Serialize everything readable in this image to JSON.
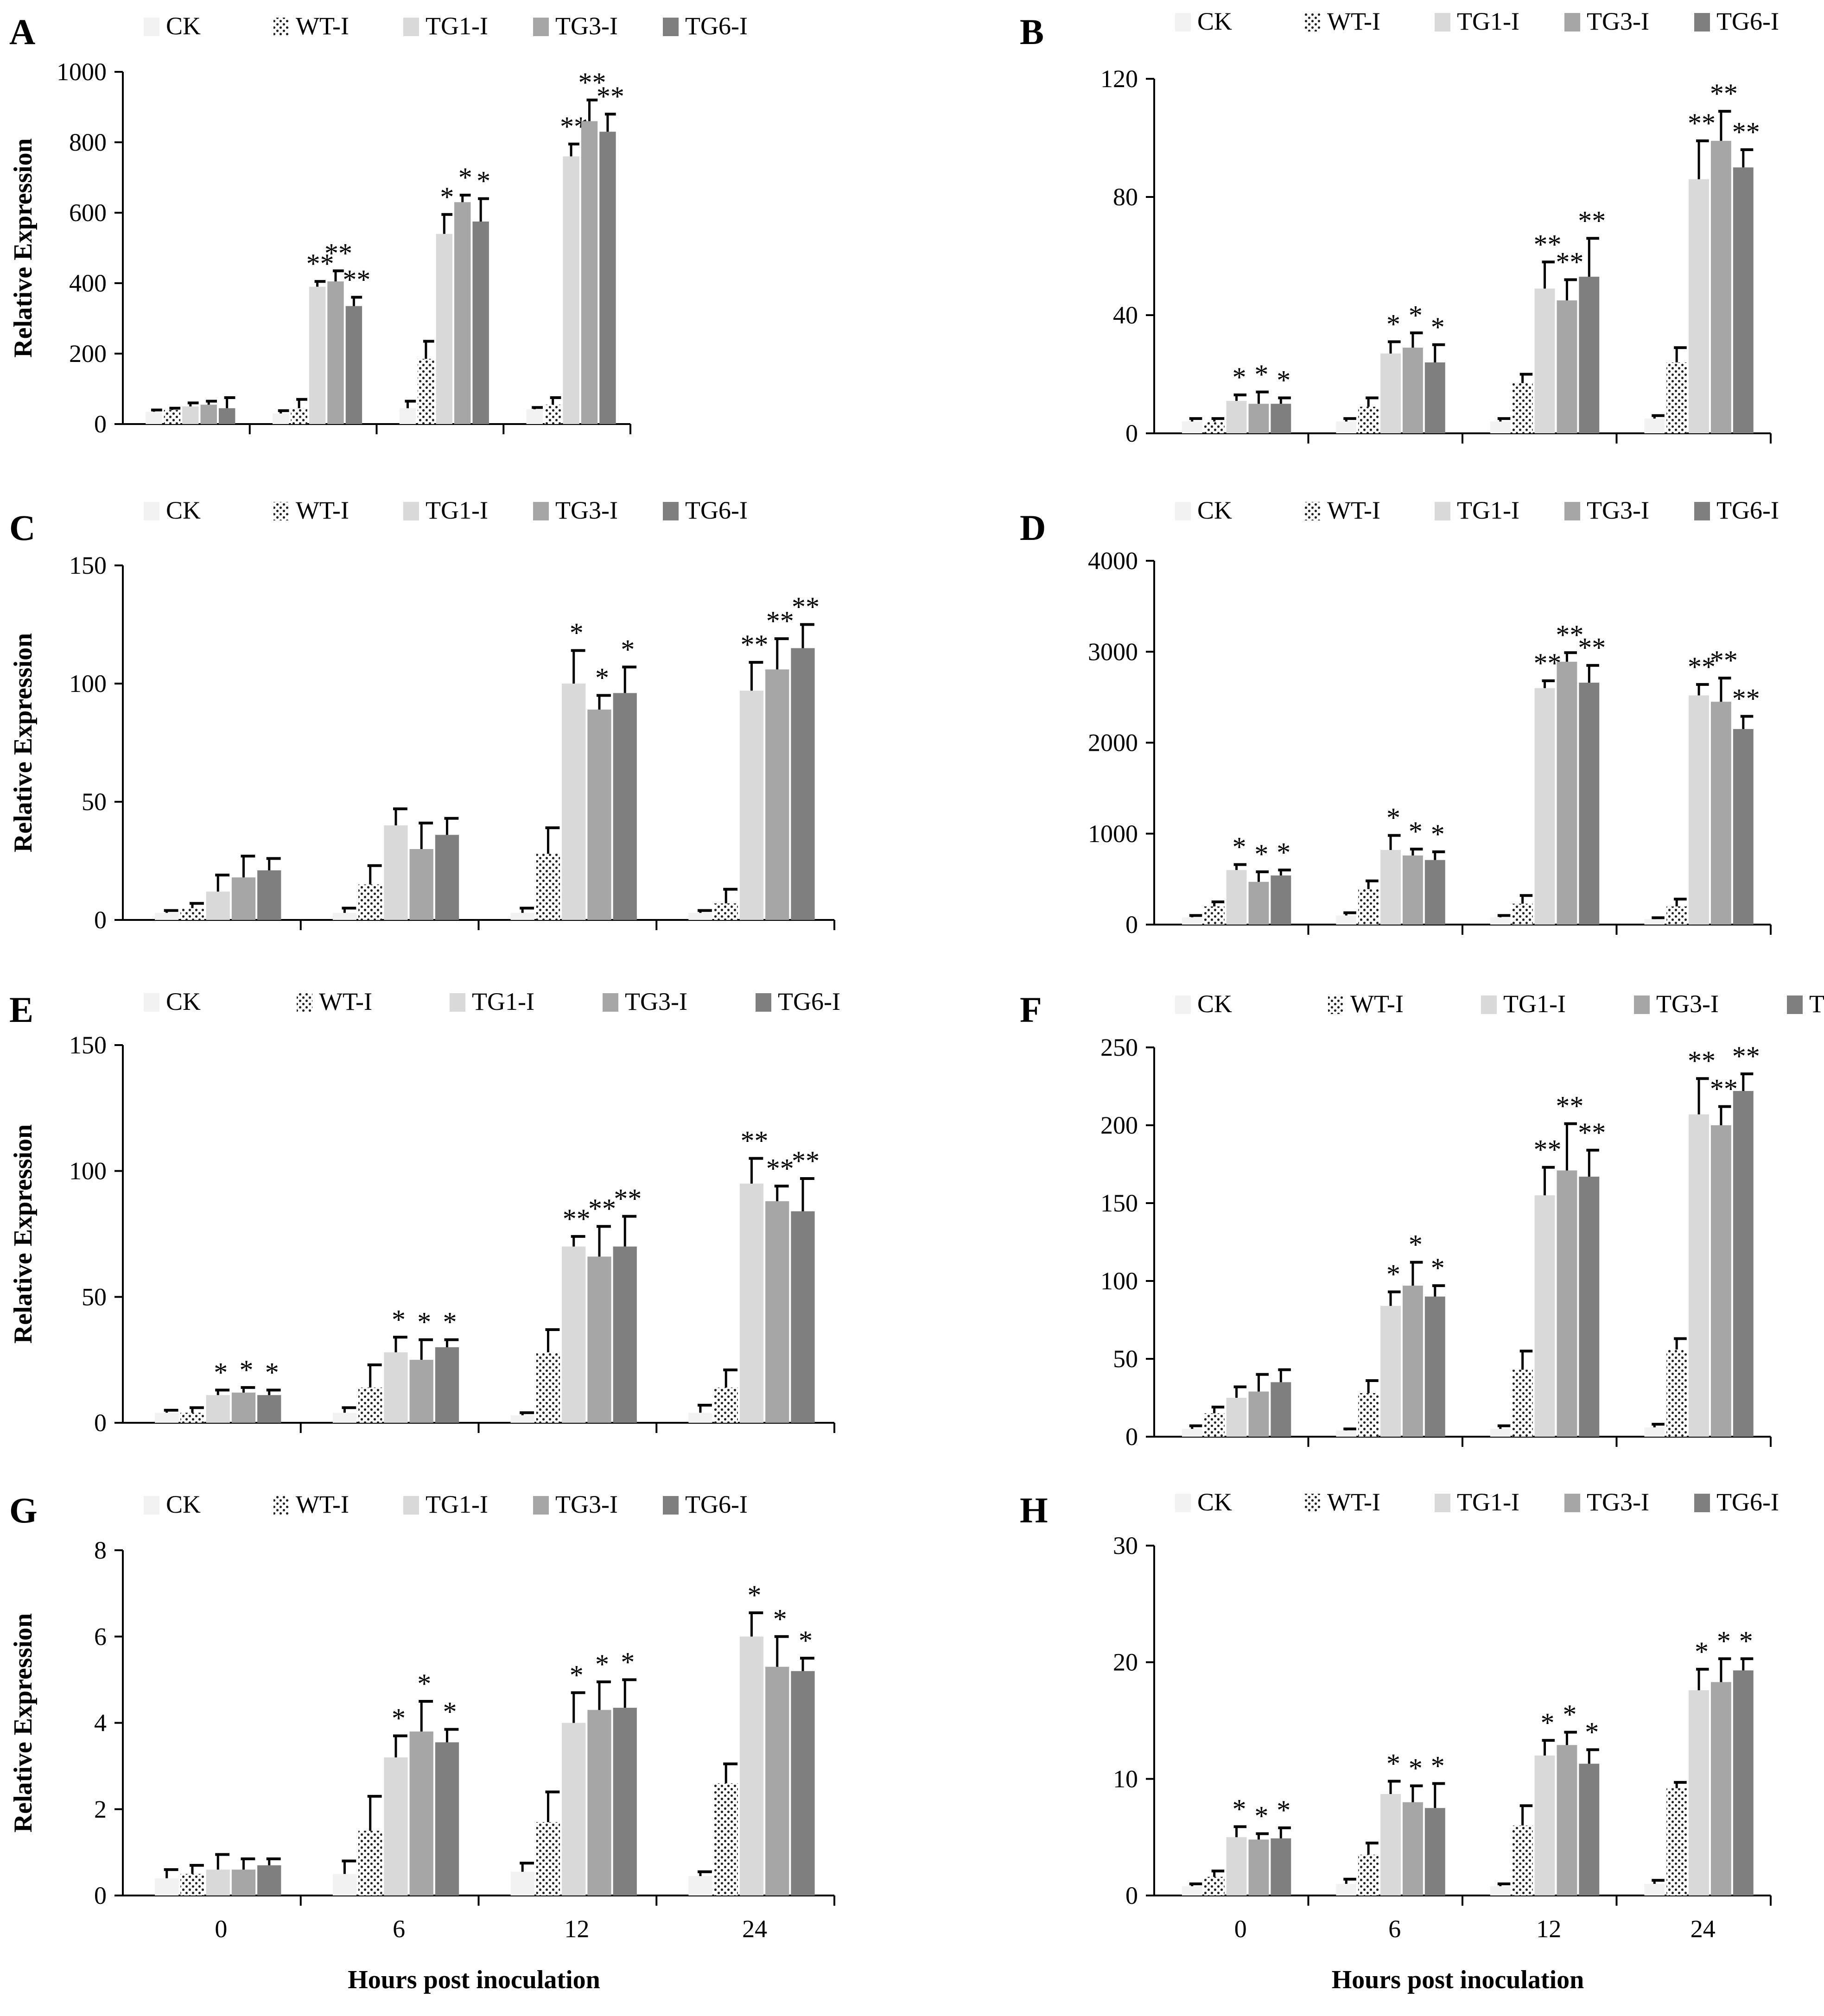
{
  "figure": {
    "legend_labels": [
      "CK",
      "WT-I",
      "TG1-I",
      "TG3-I",
      "TG6-I"
    ],
    "colors": {
      "CK": "#f2f2f2",
      "WT-I": "#ffffff",
      "TG1-I": "#d9d9d9",
      "TG3-I": "#a6a6a6",
      "TG6-I": "#7f7f7f",
      "axis": "#000000",
      "error_bar": "#000000"
    },
    "x_axis_title": "Hours post inoculation",
    "y_axis_title": "Relative Expression"
  },
  "chart_data": [
    {
      "panel": "A",
      "type": "bar",
      "categories": [
        "0",
        "6",
        "12",
        "24"
      ],
      "ylabel": "Relative Expression",
      "xlabel": "",
      "ylim": [
        0,
        1000
      ],
      "yticks": [
        "0",
        "200",
        "400",
        "600",
        "800",
        "1000"
      ],
      "show_xticks": false,
      "series": [
        {
          "name": "CK",
          "values": [
            35,
            30,
            45,
            42
          ],
          "errors": [
            5,
            8,
            20,
            5
          ],
          "sig": [
            "",
            "",
            "",
            ""
          ]
        },
        {
          "name": "WT-I",
          "values": [
            40,
            45,
            185,
            55
          ],
          "errors": [
            5,
            25,
            50,
            20
          ],
          "sig": [
            "",
            "",
            "",
            ""
          ]
        },
        {
          "name": "TG1-I",
          "values": [
            50,
            390,
            540,
            760
          ],
          "errors": [
            10,
            15,
            55,
            35
          ],
          "sig": [
            "",
            "**",
            "*",
            "**"
          ]
        },
        {
          "name": "TG3-I",
          "values": [
            55,
            405,
            630,
            860
          ],
          "errors": [
            10,
            30,
            20,
            60
          ],
          "sig": [
            "",
            "**",
            "*",
            "**"
          ]
        },
        {
          "name": "TG6-I",
          "values": [
            45,
            335,
            575,
            830
          ],
          "errors": [
            30,
            25,
            65,
            50
          ],
          "sig": [
            "",
            "**",
            "*",
            "**"
          ]
        }
      ]
    },
    {
      "panel": "B",
      "type": "bar",
      "categories": [
        "0",
        "6",
        "12",
        "24"
      ],
      "ylabel": "",
      "xlabel": "",
      "ylim": [
        0,
        120
      ],
      "yticks": [
        "0",
        "40",
        "80",
        "120"
      ],
      "show_xticks": false,
      "series": [
        {
          "name": "CK",
          "values": [
            4,
            4,
            4,
            5
          ],
          "errors": [
            1,
            1,
            1,
            1
          ],
          "sig": [
            "",
            "",
            "",
            ""
          ]
        },
        {
          "name": "WT-I",
          "values": [
            4,
            9,
            17,
            24
          ],
          "errors": [
            1,
            3,
            3,
            5
          ],
          "sig": [
            "",
            "",
            "",
            ""
          ]
        },
        {
          "name": "TG1-I",
          "values": [
            11,
            27,
            49,
            86
          ],
          "errors": [
            2,
            4,
            9,
            13
          ],
          "sig": [
            "*",
            "*",
            "**",
            "**"
          ]
        },
        {
          "name": "TG3-I",
          "values": [
            10,
            29,
            45,
            99
          ],
          "errors": [
            4,
            5,
            7,
            10
          ],
          "sig": [
            "*",
            "*",
            "**",
            "**"
          ]
        },
        {
          "name": "TG6-I",
          "values": [
            10,
            24,
            53,
            90
          ],
          "errors": [
            2,
            6,
            13,
            6
          ],
          "sig": [
            "*",
            "*",
            "**",
            "**"
          ]
        }
      ]
    },
    {
      "panel": "C",
      "type": "bar",
      "categories": [
        "0",
        "6",
        "12",
        "24"
      ],
      "ylabel": "Relative Expression",
      "xlabel": "",
      "ylim": [
        0,
        150
      ],
      "yticks": [
        "0",
        "50",
        "100",
        "150"
      ],
      "show_xticks": false,
      "series": [
        {
          "name": "CK",
          "values": [
            3,
            3,
            3,
            3
          ],
          "errors": [
            1,
            2,
            2,
            1
          ],
          "sig": [
            "",
            "",
            "",
            ""
          ]
        },
        {
          "name": "WT-I",
          "values": [
            5,
            15,
            28,
            7
          ],
          "errors": [
            2,
            8,
            11,
            6
          ],
          "sig": [
            "",
            "",
            "",
            ""
          ]
        },
        {
          "name": "TG1-I",
          "values": [
            12,
            40,
            100,
            97
          ],
          "errors": [
            7,
            7,
            14,
            12
          ],
          "sig": [
            "",
            "",
            "*",
            "**"
          ]
        },
        {
          "name": "TG3-I",
          "values": [
            18,
            30,
            89,
            106
          ],
          "errors": [
            9,
            11,
            6,
            13
          ],
          "sig": [
            "",
            "",
            "*",
            "**"
          ]
        },
        {
          "name": "TG6-I",
          "values": [
            21,
            36,
            96,
            115
          ],
          "errors": [
            5,
            7,
            11,
            10
          ],
          "sig": [
            "",
            "",
            "*",
            "**"
          ]
        }
      ]
    },
    {
      "panel": "D",
      "type": "bar",
      "categories": [
        "0",
        "6",
        "12",
        "24"
      ],
      "ylabel": "",
      "xlabel": "",
      "ylim": [
        0,
        4000
      ],
      "yticks": [
        "0",
        "1000",
        "2000",
        "3000",
        "4000"
      ],
      "show_xticks": false,
      "series": [
        {
          "name": "CK",
          "values": [
            80,
            100,
            80,
            60
          ],
          "errors": [
            20,
            30,
            20,
            15
          ],
          "sig": [
            "",
            "",
            "",
            ""
          ]
        },
        {
          "name": "WT-I",
          "values": [
            200,
            390,
            230,
            200
          ],
          "errors": [
            50,
            90,
            90,
            80
          ],
          "sig": [
            "",
            "",
            "",
            ""
          ]
        },
        {
          "name": "TG1-I",
          "values": [
            600,
            820,
            2600,
            2520
          ],
          "errors": [
            60,
            160,
            80,
            120
          ],
          "sig": [
            "*",
            "*",
            "**",
            "**"
          ]
        },
        {
          "name": "TG3-I",
          "values": [
            470,
            760,
            2890,
            2450
          ],
          "errors": [
            110,
            70,
            100,
            260
          ],
          "sig": [
            "*",
            "*",
            "**",
            "**"
          ]
        },
        {
          "name": "TG6-I",
          "values": [
            540,
            710,
            2660,
            2150
          ],
          "errors": [
            60,
            90,
            190,
            140
          ],
          "sig": [
            "*",
            "*",
            "**",
            "**"
          ]
        }
      ]
    },
    {
      "panel": "E",
      "type": "bar",
      "categories": [
        "0",
        "6",
        "12",
        "24"
      ],
      "ylabel": "Relative Expression",
      "xlabel": "",
      "ylim": [
        0,
        150
      ],
      "yticks": [
        "0",
        "50",
        "100",
        "150"
      ],
      "show_xticks": false,
      "series": [
        {
          "name": "CK",
          "values": [
            4,
            4,
            3,
            4
          ],
          "errors": [
            1,
            2,
            1,
            3
          ],
          "sig": [
            "",
            "",
            "",
            ""
          ]
        },
        {
          "name": "WT-I",
          "values": [
            4,
            14,
            28,
            14
          ],
          "errors": [
            2,
            9,
            9,
            7
          ],
          "sig": [
            "",
            "",
            "",
            ""
          ]
        },
        {
          "name": "TG1-I",
          "values": [
            11,
            28,
            70,
            95
          ],
          "errors": [
            2,
            6,
            4,
            10
          ],
          "sig": [
            "*",
            "*",
            "**",
            "**"
          ]
        },
        {
          "name": "TG3-I",
          "values": [
            12,
            25,
            66,
            88
          ],
          "errors": [
            2,
            8,
            12,
            6
          ],
          "sig": [
            "*",
            "*",
            "**",
            "**"
          ]
        },
        {
          "name": "TG6-I",
          "values": [
            11,
            30,
            70,
            84
          ],
          "errors": [
            2,
            3,
            12,
            13
          ],
          "sig": [
            "*",
            "*",
            "**",
            "**"
          ]
        }
      ]
    },
    {
      "panel": "F",
      "type": "bar",
      "categories": [
        "0",
        "6",
        "12",
        "24"
      ],
      "ylabel": "",
      "xlabel": "",
      "ylim": [
        0,
        250
      ],
      "yticks": [
        "0",
        "50",
        "100",
        "150",
        "200",
        "250"
      ],
      "show_xticks": false,
      "series": [
        {
          "name": "CK",
          "values": [
            5,
            4,
            5,
            6
          ],
          "errors": [
            2,
            1,
            2,
            2
          ],
          "sig": [
            "",
            "",
            "",
            ""
          ]
        },
        {
          "name": "WT-I",
          "values": [
            15,
            28,
            43,
            56
          ],
          "errors": [
            4,
            8,
            12,
            7
          ],
          "sig": [
            "",
            "",
            "",
            ""
          ]
        },
        {
          "name": "TG1-I",
          "values": [
            25,
            84,
            155,
            207
          ],
          "errors": [
            7,
            9,
            18,
            23
          ],
          "sig": [
            "",
            "*",
            "**",
            "**"
          ]
        },
        {
          "name": "TG3-I",
          "values": [
            29,
            97,
            171,
            200
          ],
          "errors": [
            11,
            15,
            30,
            12
          ],
          "sig": [
            "",
            "*",
            "**",
            "**"
          ]
        },
        {
          "name": "TG6-I",
          "values": [
            35,
            90,
            167,
            222
          ],
          "errors": [
            8,
            7,
            17,
            11
          ],
          "sig": [
            "",
            "*",
            "**",
            "**"
          ]
        }
      ]
    },
    {
      "panel": "G",
      "type": "bar",
      "categories": [
        "0",
        "6",
        "12",
        "24"
      ],
      "ylabel": "Relative Expression",
      "xlabel": "Hours post inoculation",
      "ylim": [
        0,
        8
      ],
      "yticks": [
        "0",
        "2",
        "4",
        "6",
        "8"
      ],
      "show_xticks": true,
      "series": [
        {
          "name": "CK",
          "values": [
            0.4,
            0.5,
            0.55,
            0.45
          ],
          "errors": [
            0.2,
            0.3,
            0.2,
            0.1
          ],
          "sig": [
            "",
            "",
            "",
            ""
          ]
        },
        {
          "name": "WT-I",
          "values": [
            0.5,
            1.5,
            1.7,
            2.6
          ],
          "errors": [
            0.2,
            0.8,
            0.7,
            0.45
          ],
          "sig": [
            "",
            "",
            "",
            ""
          ]
        },
        {
          "name": "TG1-I",
          "values": [
            0.6,
            3.2,
            4.0,
            6.0
          ],
          "errors": [
            0.35,
            0.5,
            0.7,
            0.55
          ],
          "sig": [
            "",
            "*",
            "*",
            "*"
          ]
        },
        {
          "name": "TG3-I",
          "values": [
            0.6,
            3.8,
            4.3,
            5.3
          ],
          "errors": [
            0.25,
            0.7,
            0.65,
            0.7
          ],
          "sig": [
            "",
            "*",
            "*",
            "*"
          ]
        },
        {
          "name": "TG6-I",
          "values": [
            0.7,
            3.55,
            4.35,
            5.2
          ],
          "errors": [
            0.15,
            0.3,
            0.65,
            0.3
          ],
          "sig": [
            "",
            "*",
            "*",
            "*"
          ]
        }
      ]
    },
    {
      "panel": "H",
      "type": "bar",
      "categories": [
        "0",
        "6",
        "12",
        "24"
      ],
      "ylabel": "",
      "xlabel": "Hours post inoculation",
      "ylim": [
        0,
        30
      ],
      "yticks": [
        "0",
        "10",
        "20",
        "30"
      ],
      "show_xticks": true,
      "series": [
        {
          "name": "CK",
          "values": [
            0.8,
            1.0,
            0.8,
            1.0
          ],
          "errors": [
            0.2,
            0.4,
            0.2,
            0.3
          ],
          "sig": [
            "",
            "",
            "",
            ""
          ]
        },
        {
          "name": "WT-I",
          "values": [
            1.6,
            3.5,
            6.0,
            9.2
          ],
          "errors": [
            0.5,
            1.0,
            1.7,
            0.5
          ],
          "sig": [
            "",
            "",
            "",
            ""
          ]
        },
        {
          "name": "TG1-I",
          "values": [
            5.0,
            8.7,
            12.0,
            17.6
          ],
          "errors": [
            0.9,
            1.1,
            1.3,
            1.8
          ],
          "sig": [
            "*",
            "*",
            "*",
            "*"
          ]
        },
        {
          "name": "TG3-I",
          "values": [
            4.8,
            8.0,
            12.9,
            18.3
          ],
          "errors": [
            0.5,
            1.4,
            1.1,
            2.0
          ],
          "sig": [
            "*",
            "*",
            "*",
            "*"
          ]
        },
        {
          "name": "TG6-I",
          "values": [
            4.9,
            7.5,
            11.3,
            19.3
          ],
          "errors": [
            0.9,
            2.1,
            1.2,
            1.0
          ],
          "sig": [
            "*",
            "*",
            "*",
            "*"
          ]
        }
      ]
    }
  ]
}
